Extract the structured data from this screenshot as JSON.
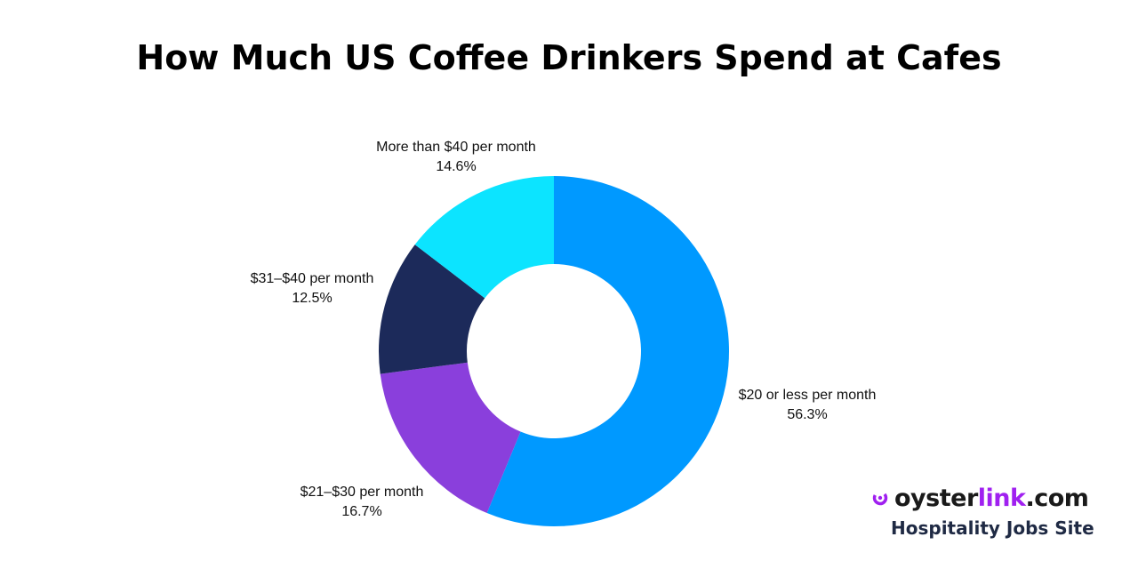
{
  "chart_data": {
    "type": "pie",
    "donut": true,
    "title": "How Much US Coffee Drinkers Spend at Cafes",
    "slices": [
      {
        "label": "$20 or less per month",
        "value": 56.3,
        "value_label": "56.3%",
        "color": "#0099ff"
      },
      {
        "label": "$21–$30 per month",
        "value": 16.7,
        "value_label": "16.7%",
        "color": "#8a3fdc"
      },
      {
        "label": "$31–$40 per month",
        "value": 12.5,
        "value_label": "12.5%",
        "color": "#1c2a5a"
      },
      {
        "label": "More than $40 per month",
        "value": 14.6,
        "value_label": "14.6%",
        "color": "#0ce4ff"
      }
    ]
  },
  "brand": {
    "logo_part_a": "oyster",
    "logo_part_b": "link",
    "logo_part_c": ".com",
    "tagline": "Hospitality Jobs Site",
    "mark_icon": "oyster-logo-icon",
    "accent_color": "#a020f0"
  }
}
